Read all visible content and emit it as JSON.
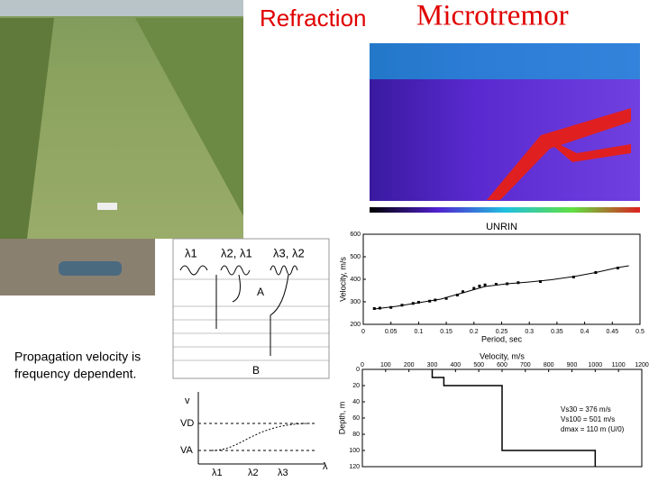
{
  "title": {
    "part1": "Refraction",
    "part2": "Microtremor"
  },
  "caption": {
    "line1": "Propagation velocity is",
    "line2": "frequency dependent."
  },
  "diagram": {
    "top_labels": [
      "λ1",
      "λ2, λ1",
      "λ3, λ2"
    ],
    "layer_a": "A",
    "layer_b": "B",
    "graph_v": "v",
    "graph_vd": "VD",
    "graph_va": "VA",
    "graph_lambdas": [
      "λ1",
      "λ2",
      "λ3"
    ],
    "graph_lambda": "λ"
  },
  "chart_data": [
    {
      "type": "scatter",
      "title": "UNRIN",
      "x_label": "Period, sec",
      "y_label": "Velocity, m/s",
      "xlim": [
        0,
        0.5
      ],
      "xticks": [
        0,
        0.05,
        0.1,
        0.15,
        0.2,
        0.25,
        0.3,
        0.35,
        0.4,
        0.45,
        0.5
      ],
      "ylim": [
        200,
        600
      ],
      "yticks": [
        200,
        300,
        400,
        500,
        600
      ],
      "series": [
        {
          "type": "scatter",
          "color": "#000000",
          "x": [
            0.02,
            0.03,
            0.05,
            0.07,
            0.09,
            0.1,
            0.12,
            0.13,
            0.15,
            0.17,
            0.18,
            0.2,
            0.21,
            0.22,
            0.24,
            0.26,
            0.28,
            0.32,
            0.38,
            0.42,
            0.46
          ],
          "values": [
            270,
            272,
            275,
            285,
            293,
            298,
            303,
            308,
            315,
            330,
            345,
            360,
            370,
            375,
            378,
            380,
            385,
            390,
            410,
            430,
            450
          ]
        },
        {
          "type": "line",
          "color": "#000000",
          "x": [
            0.02,
            0.06,
            0.1,
            0.14,
            0.18,
            0.22,
            0.26,
            0.3,
            0.34,
            0.38,
            0.42,
            0.46,
            0.48
          ],
          "values": [
            268,
            280,
            296,
            312,
            340,
            368,
            380,
            388,
            398,
            412,
            430,
            452,
            460
          ]
        }
      ]
    },
    {
      "type": "step",
      "x_label": "Velocity, m/s",
      "y_label": "Depth, m",
      "xlim": [
        0,
        1200
      ],
      "xticks": [
        0,
        100,
        200,
        300,
        400,
        500,
        600,
        700,
        800,
        900,
        1000,
        1100,
        1200
      ],
      "ylim": [
        0,
        120
      ],
      "yticks": [
        0,
        20,
        40,
        60,
        80,
        100,
        120
      ],
      "color": "#000000",
      "x": [
        300,
        300,
        350,
        350,
        600,
        600,
        1000,
        1000
      ],
      "values": [
        0,
        10,
        10,
        20,
        20,
        100,
        100,
        120
      ],
      "annotations": [
        "Vs30 = 376 m/s",
        "Vs100 = 501 m/s",
        "dmax = 110 m (U/0)"
      ]
    }
  ]
}
